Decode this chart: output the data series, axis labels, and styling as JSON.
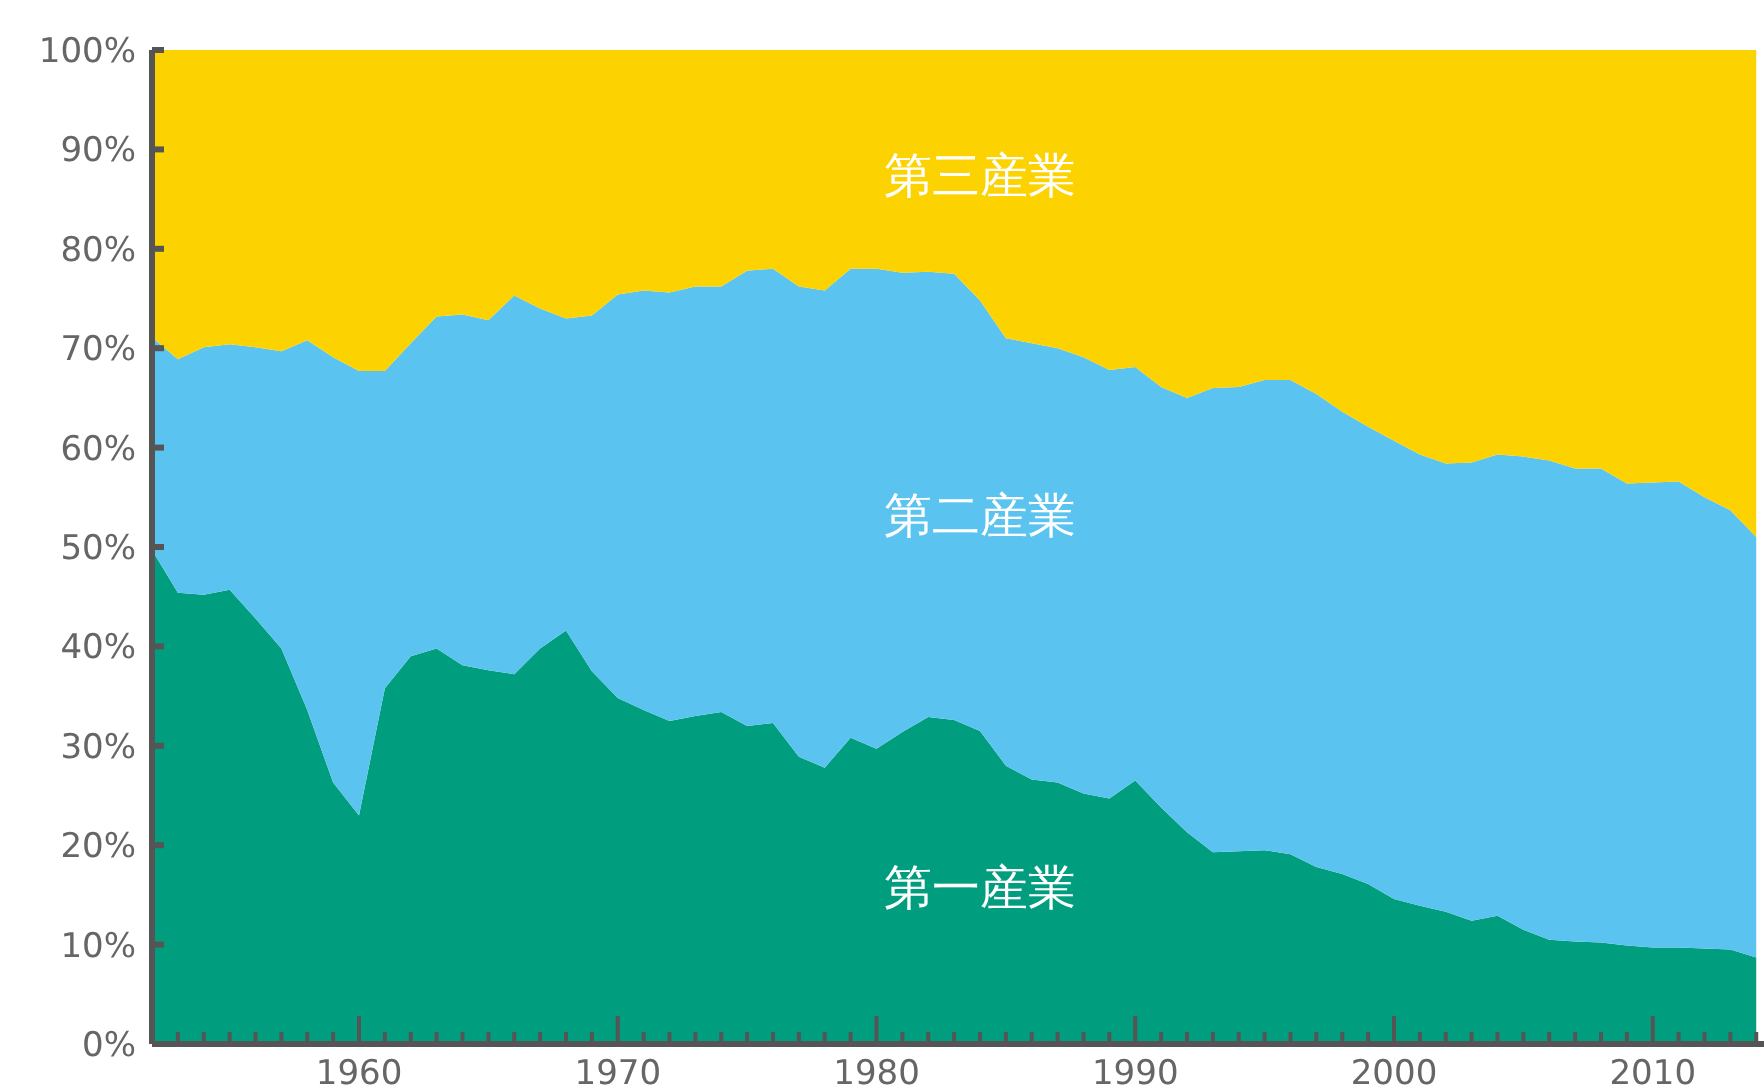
{
  "chart_data": {
    "type": "area",
    "stacked": true,
    "legend": false,
    "grid": false,
    "x": [
      1952,
      1953,
      1954,
      1955,
      1956,
      1957,
      1958,
      1959,
      1960,
      1961,
      1962,
      1963,
      1964,
      1965,
      1966,
      1967,
      1968,
      1969,
      1970,
      1971,
      1972,
      1973,
      1974,
      1975,
      1976,
      1977,
      1978,
      1979,
      1980,
      1981,
      1982,
      1983,
      1984,
      1985,
      1986,
      1987,
      1988,
      1989,
      1990,
      1991,
      1992,
      1993,
      1994,
      1995,
      1996,
      1997,
      1998,
      1999,
      2000,
      2001,
      2002,
      2003,
      2004,
      2005,
      2006,
      2007,
      2008,
      2009,
      2010,
      2011,
      2012,
      2013,
      2014
    ],
    "xlim": [
      1952,
      2014.3
    ],
    "xticks": [
      {
        "value": 1953,
        "label": null
      },
      {
        "value": 1954,
        "label": null
      },
      {
        "value": 1955,
        "label": null
      },
      {
        "value": 1956,
        "label": null
      },
      {
        "value": 1957,
        "label": null
      },
      {
        "value": 1958,
        "label": null
      },
      {
        "value": 1959,
        "label": null
      },
      1960,
      {
        "value": 1961,
        "label": null
      },
      {
        "value": 1962,
        "label": null
      },
      {
        "value": 1963,
        "label": null
      },
      {
        "value": 1964,
        "label": null
      },
      {
        "value": 1965,
        "label": null
      },
      {
        "value": 1966,
        "label": null
      },
      {
        "value": 1967,
        "label": null
      },
      {
        "value": 1968,
        "label": null
      },
      {
        "value": 1969,
        "label": null
      },
      1970,
      {
        "value": 1971,
        "label": null
      },
      {
        "value": 1972,
        "label": null
      },
      {
        "value": 1973,
        "label": null
      },
      {
        "value": 1974,
        "label": null
      },
      {
        "value": 1975,
        "label": null
      },
      {
        "value": 1976,
        "label": null
      },
      {
        "value": 1977,
        "label": null
      },
      {
        "value": 1978,
        "label": null
      },
      {
        "value": 1979,
        "label": null
      },
      1980,
      {
        "value": 1981,
        "label": null
      },
      {
        "value": 1982,
        "label": null
      },
      {
        "value": 1983,
        "label": null
      },
      {
        "value": 1984,
        "label": null
      },
      {
        "value": 1985,
        "label": null
      },
      {
        "value": 1986,
        "label": null
      },
      {
        "value": 1987,
        "label": null
      },
      {
        "value": 1988,
        "label": null
      },
      {
        "value": 1989,
        "label": null
      },
      1990,
      {
        "value": 1991,
        "label": null
      },
      {
        "value": 1992,
        "label": null
      },
      {
        "value": 1993,
        "label": null
      },
      {
        "value": 1994,
        "label": null
      },
      {
        "value": 1995,
        "label": null
      },
      {
        "value": 1996,
        "label": null
      },
      {
        "value": 1997,
        "label": null
      },
      {
        "value": 1998,
        "label": null
      },
      {
        "value": 1999,
        "label": null
      },
      2000,
      {
        "value": 2001,
        "label": null
      },
      {
        "value": 2002,
        "label": null
      },
      {
        "value": 2003,
        "label": null
      },
      {
        "value": 2004,
        "label": null
      },
      {
        "value": 2005,
        "label": null
      },
      {
        "value": 2006,
        "label": null
      },
      {
        "value": 2007,
        "label": null
      },
      {
        "value": 2008,
        "label": null
      },
      {
        "value": 2009,
        "label": null
      },
      2010,
      {
        "value": 2011,
        "label": null
      },
      {
        "value": 2012,
        "label": null
      },
      {
        "value": 2013,
        "label": null
      },
      {
        "value": 2014,
        "label": null
      }
    ],
    "ylim": [
      0,
      100
    ],
    "yticks": [
      {
        "value": 0,
        "label": "0%"
      },
      {
        "value": 10,
        "label": "10%"
      },
      {
        "value": 20,
        "label": "20%"
      },
      {
        "value": 30,
        "label": "30%"
      },
      {
        "value": 40,
        "label": "40%"
      },
      {
        "value": 50,
        "label": "50%"
      },
      {
        "value": 60,
        "label": "60%"
      },
      {
        "value": 70,
        "label": "70%"
      },
      {
        "value": 80,
        "label": "80%"
      },
      {
        "value": 90,
        "label": "90%"
      },
      {
        "value": 100,
        "label": "100%"
      }
    ],
    "series": [
      {
        "name": "第一産業",
        "color": "#009e7e",
        "values": [
          49.7,
          45.4,
          45.2,
          45.7,
          42.8,
          39.8,
          33.6,
          26.3,
          23.0,
          35.8,
          39.0,
          39.8,
          38.1,
          37.6,
          37.2,
          39.8,
          41.6,
          37.5,
          34.8,
          33.6,
          32.5,
          33.0,
          33.4,
          32.0,
          32.3,
          28.9,
          27.8,
          30.8,
          29.7,
          31.4,
          32.9,
          32.6,
          31.5,
          28.0,
          26.6,
          26.3,
          25.2,
          24.7,
          26.5,
          23.8,
          21.3,
          19.3,
          19.4,
          19.5,
          19.1,
          17.8,
          17.1,
          16.1,
          14.6,
          13.9,
          13.3,
          12.4,
          12.9,
          11.5,
          10.5,
          10.3,
          10.2,
          9.9,
          9.7,
          9.7,
          9.6,
          9.5,
          8.7
        ]
      },
      {
        "name": "第二産業",
        "color": "#5ac3ef",
        "values": [
          21.4,
          23.5,
          24.9,
          24.7,
          27.3,
          29.9,
          37.2,
          42.8,
          44.7,
          31.9,
          31.5,
          33.4,
          35.3,
          35.2,
          38.1,
          34.2,
          31.4,
          35.8,
          40.6,
          42.2,
          43.1,
          43.2,
          42.8,
          45.8,
          45.7,
          47.3,
          48.0,
          47.2,
          48.3,
          46.2,
          44.8,
          44.9,
          43.3,
          43.0,
          43.9,
          43.7,
          43.9,
          43.1,
          41.6,
          42.3,
          43.7,
          46.7,
          46.7,
          47.3,
          47.7,
          47.6,
          46.5,
          46.0,
          46.1,
          45.4,
          45.1,
          46.1,
          46.4,
          47.6,
          48.2,
          47.6,
          47.7,
          46.5,
          46.8,
          46.9,
          45.4,
          44.2,
          42.3
        ]
      },
      {
        "name": "第三産業",
        "color": "#fcd200",
        "values": [
          28.9,
          31.1,
          29.9,
          29.6,
          29.9,
          30.3,
          29.2,
          30.9,
          32.3,
          32.3,
          29.5,
          26.8,
          26.6,
          27.2,
          24.7,
          26.0,
          27.0,
          26.7,
          24.6,
          24.2,
          24.4,
          23.8,
          23.8,
          22.2,
          22.0,
          23.8,
          24.2,
          22.0,
          22.0,
          22.4,
          22.3,
          22.5,
          25.2,
          29.0,
          29.5,
          30.0,
          30.9,
          32.2,
          31.9,
          33.9,
          35.0,
          34.0,
          33.9,
          33.2,
          33.2,
          34.6,
          36.4,
          37.9,
          39.3,
          40.7,
          41.6,
          41.5,
          40.7,
          40.9,
          41.3,
          42.1,
          42.1,
          43.6,
          43.5,
          43.4,
          45.0,
          46.3,
          49.0
        ]
      }
    ]
  }
}
